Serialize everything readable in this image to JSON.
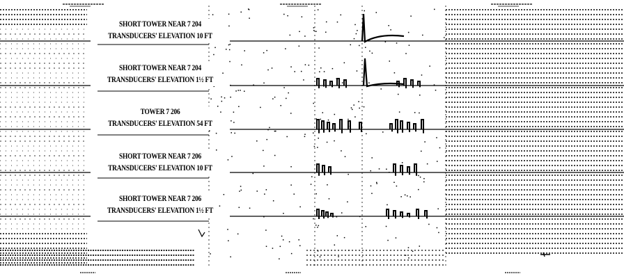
{
  "document": {
    "channels": [
      {
        "station": "SHORT TOWER NEAR 7 204",
        "elevation": "TRANSDUCERS' ELEVATION 10 FT"
      },
      {
        "station": "SHORT TOWER NEAR 7 204",
        "elevation": "TRANSDUCERS' ELEVATION 1½ FT"
      },
      {
        "station": "TOWER 7 206",
        "elevation": "TRANSDUCERS' ELEVATION 54 FT"
      },
      {
        "station": "SHORT TOWER NEAR 7 206",
        "elevation": "TRANSDUCERS' ELEVATION 10 FT"
      },
      {
        "station": "SHORT TOWER NEAR 7 206",
        "elevation": "TRANSDUCERS' ELEVATION 1½ FT"
      }
    ]
  },
  "colors": {
    "ink": "#000000",
    "paper": "#ffffff"
  }
}
